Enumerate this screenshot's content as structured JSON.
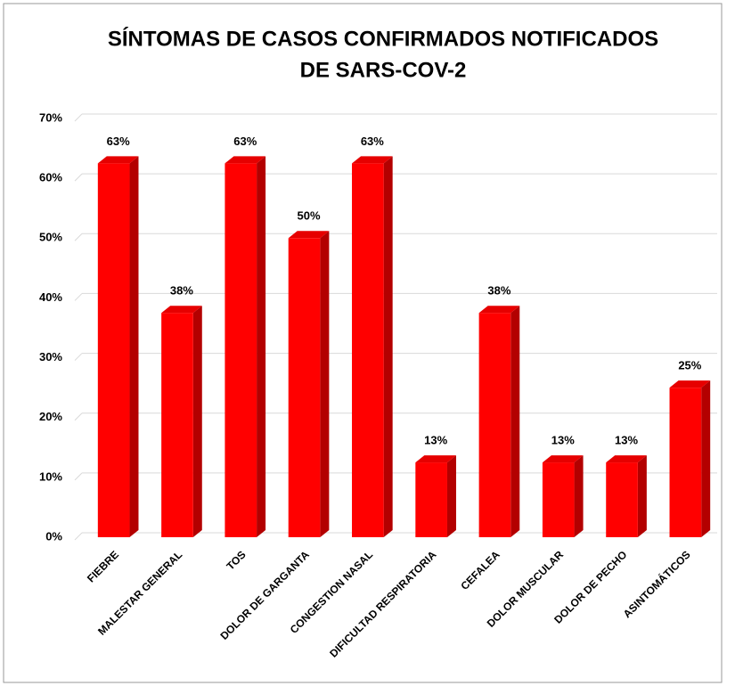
{
  "chart_data": {
    "type": "bar3d",
    "title": [
      "SÍNTOMAS DE CASOS CONFIRMADOS NOTIFICADOS",
      "DE SARS-COV-2"
    ],
    "categories": [
      "FIEBRE",
      "MALESTAR GENERAL",
      "TOS",
      "DOLOR DE GARGANTA",
      "CONGESTION NASAL",
      "DIFICULTAD RESPIRATORIA",
      "CEFALEA",
      "DOLOR MUSCULAR",
      "DOLOR DE PECHO",
      "ASINTOMÁTICOS"
    ],
    "values": [
      62.5,
      37.5,
      62.5,
      50,
      62.5,
      12.5,
      37.5,
      12.5,
      12.5,
      25
    ],
    "value_labels": [
      "63%",
      "38%",
      "63%",
      "50%",
      "63%",
      "13%",
      "38%",
      "13%",
      "13%",
      "25%"
    ],
    "color": "#ff0000",
    "ylim": [
      0,
      70
    ],
    "yticks": [
      {
        "value": 0,
        "label": "0%"
      },
      {
        "value": 10,
        "label": "10%"
      },
      {
        "value": 20,
        "label": "20%"
      },
      {
        "value": 30,
        "label": "30%"
      },
      {
        "value": 40,
        "label": "40%"
      },
      {
        "value": 50,
        "label": "50%"
      },
      {
        "value": 60,
        "label": "60%"
      },
      {
        "value": 70,
        "label": "70%"
      }
    ],
    "grid": true
  }
}
